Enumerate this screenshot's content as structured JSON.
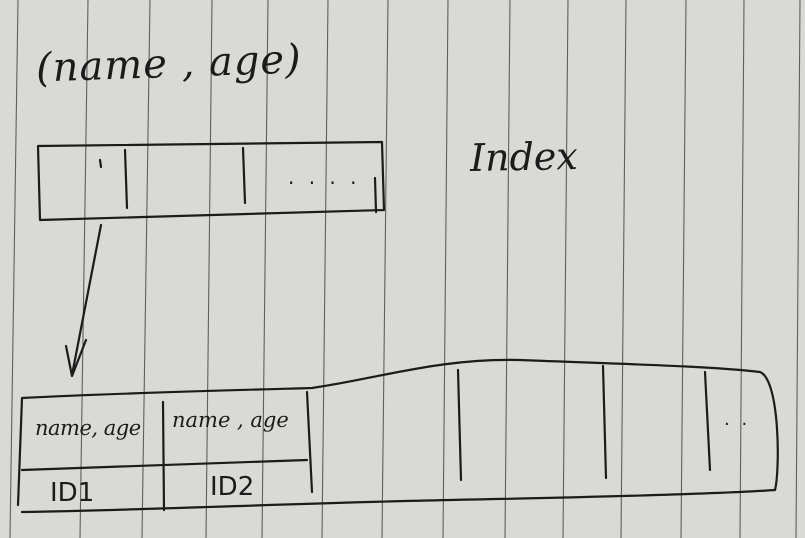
{
  "title": "(name , age)",
  "index_label": "Index",
  "top_block": {
    "ellipsis": ". . . ."
  },
  "leaf_block": {
    "cells": [
      {
        "key": "name, age",
        "id": "ID1"
      },
      {
        "key": "name , age",
        "id": "ID2"
      }
    ],
    "ellipsis": ". ."
  },
  "colors": {
    "paper": "#d9d9d6",
    "rule": "#4a4a4a",
    "ink": "#1b1b1b"
  }
}
